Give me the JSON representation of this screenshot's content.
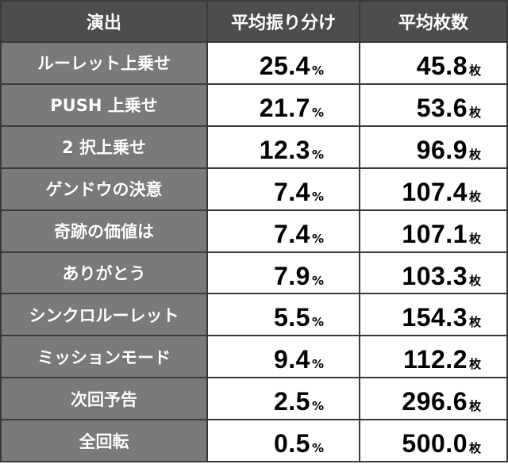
{
  "headers": [
    "演出",
    "平均振り分け",
    "平均枚数"
  ],
  "units": {
    "percent": "%",
    "count": "枚"
  },
  "rows": [
    {
      "label": "ルーレット上乗せ",
      "share": "25.4",
      "avg": "45.8"
    },
    {
      "label": "PUSH 上乗せ",
      "share": "21.7",
      "avg": "53.6"
    },
    {
      "label": "2 択上乗せ",
      "share": "12.3",
      "avg": "96.9"
    },
    {
      "label": "ゲンドウの決意",
      "share": "7.4",
      "avg": "107.4"
    },
    {
      "label": "奇跡の価値は",
      "share": "7.4",
      "avg": "107.1"
    },
    {
      "label": "ありがとう",
      "share": "7.9",
      "avg": "103.3"
    },
    {
      "label": "シンクロルーレット",
      "share": "5.5",
      "avg": "154.3"
    },
    {
      "label": "ミッションモード",
      "share": "9.4",
      "avg": "112.2"
    },
    {
      "label": "次回予告",
      "share": "2.5",
      "avg": "296.6"
    },
    {
      "label": "全回転",
      "share": "0.5",
      "avg": "500.0"
    }
  ]
}
